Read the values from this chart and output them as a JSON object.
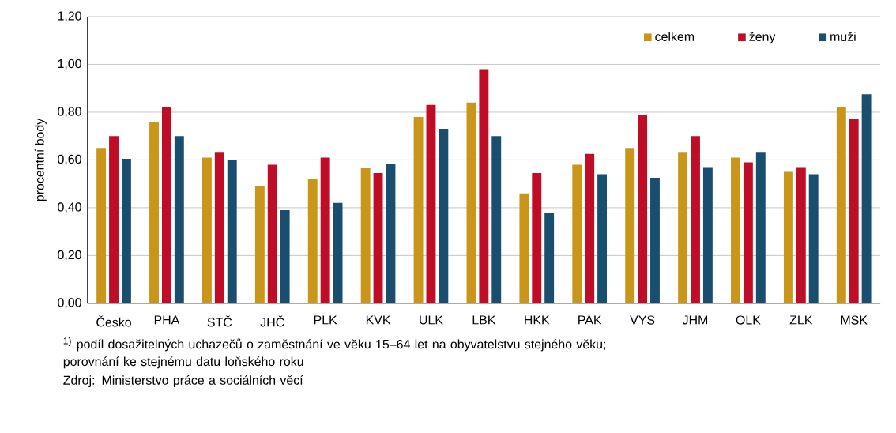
{
  "chart_data": {
    "type": "bar",
    "ylabel": "procentní body",
    "categories": [
      "Česko",
      "PHA",
      "STČ",
      "JHČ",
      "PLK",
      "KVK",
      "ULK",
      "LBK",
      "HKK",
      "PAK",
      "VYS",
      "JHM",
      "OLK",
      "ZLK",
      "MSK"
    ],
    "series": [
      {
        "name": "celkem",
        "color": "#c9961a",
        "values": [
          0.65,
          0.76,
          0.61,
          0.49,
          0.52,
          0.565,
          0.78,
          0.84,
          0.46,
          0.58,
          0.65,
          0.63,
          0.61,
          0.55,
          0.82
        ]
      },
      {
        "name": "ženy",
        "color": "#c00d27",
        "values": [
          0.7,
          0.82,
          0.63,
          0.58,
          0.61,
          0.545,
          0.83,
          0.98,
          0.545,
          0.625,
          0.79,
          0.7,
          0.59,
          0.57,
          0.77
        ]
      },
      {
        "name": "muži",
        "color": "#1a4e6e",
        "values": [
          0.605,
          0.7,
          0.6,
          0.39,
          0.42,
          0.585,
          0.73,
          0.7,
          0.38,
          0.54,
          0.525,
          0.57,
          0.63,
          0.54,
          0.875
        ]
      }
    ],
    "ylim": [
      0,
      1.2
    ],
    "yticks": [
      {
        "value": 0,
        "label": "0,00"
      },
      {
        "value": 0.2,
        "label": "0,20"
      },
      {
        "value": 0.4,
        "label": "0,40"
      },
      {
        "value": 0.6,
        "label": "0,60"
      },
      {
        "value": 0.8,
        "label": "0,80"
      },
      {
        "value": 1.0,
        "label": "1,00"
      },
      {
        "value": 1.2,
        "label": "1,20"
      }
    ],
    "grid": "y",
    "legend": "top right",
    "annotations": [
      "$^{1)}$ podíl dosažitelných uchazečů o zaměstnání ve věku 15–64 let na obyvatelstvu stejného věku; porovnání ke stejnému datu loňského roku",
      "Zdroj: Ministerstvo práce a sociálních věcí"
    ]
  }
}
